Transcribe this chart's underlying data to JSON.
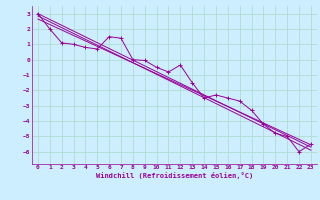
{
  "xlabel": "Windchill (Refroidissement éolien,°C)",
  "background_color": "#cceeff",
  "grid_color": "#b0ddd0",
  "line_color": "#990099",
  "xlim": [
    -0.5,
    23.5
  ],
  "ylim": [
    -6.8,
    3.5
  ],
  "yticks": [
    3,
    2,
    1,
    0,
    -1,
    -2,
    -3,
    -4,
    -5,
    -6
  ],
  "xticks": [
    0,
    1,
    2,
    3,
    4,
    5,
    6,
    7,
    8,
    9,
    10,
    11,
    12,
    13,
    14,
    15,
    16,
    17,
    18,
    19,
    20,
    21,
    22,
    23
  ],
  "data_x": [
    0,
    1,
    2,
    3,
    4,
    5,
    6,
    7,
    8,
    9,
    10,
    11,
    12,
    13,
    14,
    15,
    16,
    17,
    18,
    19,
    20,
    21,
    22,
    23
  ],
  "data_y": [
    3.0,
    2.0,
    1.1,
    1.0,
    0.8,
    0.7,
    1.5,
    1.4,
    0.0,
    -0.05,
    -0.5,
    -0.8,
    -0.35,
    -1.5,
    -2.5,
    -2.3,
    -2.5,
    -2.7,
    -3.3,
    -4.2,
    -4.8,
    -5.0,
    -6.0,
    -5.5
  ],
  "line1_x": [
    0,
    23
  ],
  "line1_y": [
    3.0,
    -5.7
  ],
  "line2_x": [
    0,
    23
  ],
  "line2_y": [
    2.85,
    -5.9
  ],
  "line3_x": [
    0,
    23
  ],
  "line3_y": [
    2.65,
    -5.55
  ]
}
